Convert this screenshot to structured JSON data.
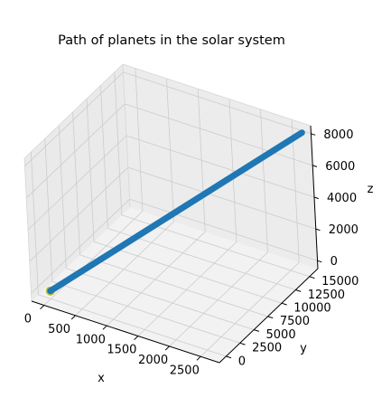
{
  "chart_data": {
    "type": "line3d",
    "title": "Path of planets in the solar system",
    "xlabel": "x",
    "ylabel": "y",
    "zlabel": "z",
    "xlim": [
      -200,
      2800
    ],
    "ylim": [
      -1200,
      16500
    ],
    "zlim": [
      -500,
      8500
    ],
    "x_ticks": [
      "0",
      "500",
      "1000",
      "1500",
      "2000",
      "2500"
    ],
    "y_ticks": [
      "0",
      "2500",
      "5000",
      "7500",
      "10000",
      "12500",
      "15000"
    ],
    "z_ticks": [
      "0",
      "2000",
      "4000",
      "6000",
      "8000"
    ],
    "grid": true,
    "series": [
      {
        "start": [
          0,
          0,
          0
        ],
        "end": [
          2700,
          16000,
          8100
        ],
        "color": "#1f77b4"
      }
    ],
    "start_marker_color": "#bcbd22",
    "pane_color": "#f2f2f2",
    "grid_color": "#cccccc"
  }
}
